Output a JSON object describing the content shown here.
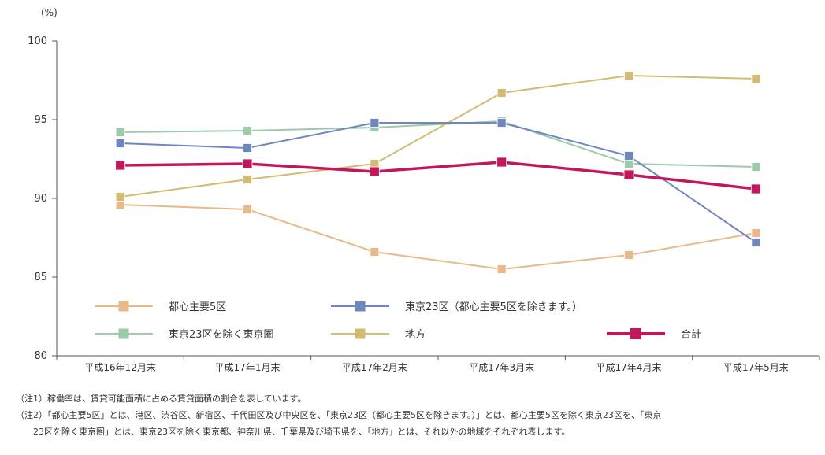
{
  "chart_data": {
    "type": "line",
    "unit_label": "(%)",
    "ylim": [
      80,
      100
    ],
    "yticks": [
      80,
      85,
      90,
      95,
      100
    ],
    "categories": [
      "平成16年12月末",
      "平成17年1月末",
      "平成17年2月末",
      "平成17年3月末",
      "平成17年4月末",
      "平成17年5月末"
    ],
    "grid": false,
    "series": [
      {
        "name": "都心主要5区",
        "color": "#e9b98a",
        "values": [
          89.6,
          89.3,
          86.6,
          85.5,
          86.4,
          87.8
        ]
      },
      {
        "name": "東京23区（都心主要5区を除きます。）",
        "color": "#6f86bf",
        "values": [
          93.5,
          93.2,
          94.8,
          94.8,
          92.7,
          87.2
        ]
      },
      {
        "name": "東京23区を除く東京圏",
        "color": "#9ccba9",
        "values": [
          94.2,
          94.3,
          94.5,
          94.9,
          92.2,
          92.0
        ]
      },
      {
        "name": "地方",
        "color": "#d4bb72",
        "values": [
          90.1,
          91.2,
          92.2,
          96.7,
          97.8,
          97.6
        ]
      },
      {
        "name": "合計",
        "color": "#c2185b",
        "values": [
          92.1,
          92.2,
          91.7,
          92.3,
          91.5,
          90.6
        ],
        "bold": true
      }
    ]
  },
  "notes": {
    "note1": "（注1）稼働率は、賃貸可能面積に占める賃貸面積の割合を表しています。",
    "note2_line1": "（注2）「都心主要5区」とは、港区、渋谷区、新宿区、千代田区及び中央区を、「東京23区（都心主要5区を除きます。）」とは、都心主要5区を除く東京23区を、「東京",
    "note2_line2": "23区を除く東京圏」とは、東京23区を除く東京都、神奈川県、千葉県及び埼玉県を、「地方」とは、それ以外の地域をそれぞれ表します。"
  }
}
